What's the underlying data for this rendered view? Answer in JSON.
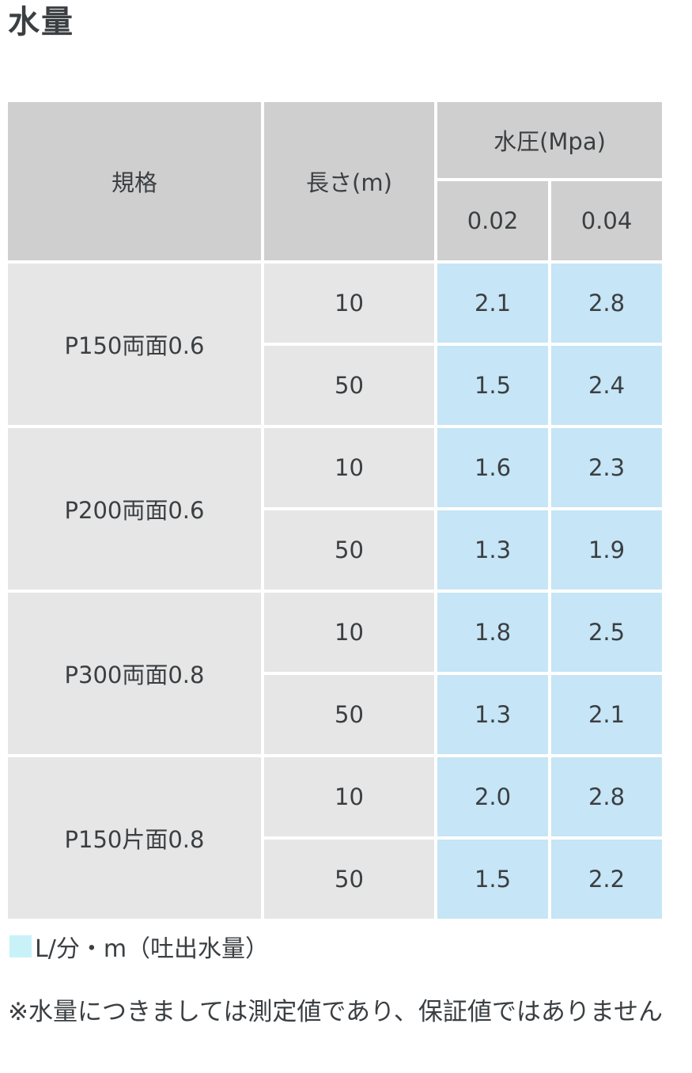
{
  "title": "水量",
  "table": {
    "header": {
      "spec": "規格",
      "length": "長さ(m)",
      "pressure": "水圧(Mpa)",
      "pressures": [
        "0.02",
        "0.04"
      ]
    },
    "groups": [
      {
        "spec": "P150両面0.6",
        "rows": [
          {
            "length": "10",
            "v1": "2.1",
            "v2": "2.8"
          },
          {
            "length": "50",
            "v1": "1.5",
            "v2": "2.4"
          }
        ]
      },
      {
        "spec": "P200両面0.6",
        "rows": [
          {
            "length": "10",
            "v1": "1.6",
            "v2": "2.3"
          },
          {
            "length": "50",
            "v1": "1.3",
            "v2": "1.9"
          }
        ]
      },
      {
        "spec": "P300両面0.8",
        "rows": [
          {
            "length": "10",
            "v1": "1.8",
            "v2": "2.5"
          },
          {
            "length": "50",
            "v1": "1.3",
            "v2": "2.1"
          }
        ]
      },
      {
        "spec": "P150片面0.8",
        "rows": [
          {
            "length": "10",
            "v1": "2.0",
            "v2": "2.8"
          },
          {
            "length": "50",
            "v1": "1.5",
            "v2": "2.2"
          }
        ]
      }
    ]
  },
  "legend": {
    "text": "L/分・m（吐出水量）",
    "swatch_color": "#c8f2f8"
  },
  "note": "※水量につきましては測定値であり、保証値ではありません",
  "colors": {
    "header_bg": "#cfcfcf",
    "label_bg": "#e6e6e6",
    "value_bg": "#c6e5f6",
    "text": "#3b3f42"
  }
}
